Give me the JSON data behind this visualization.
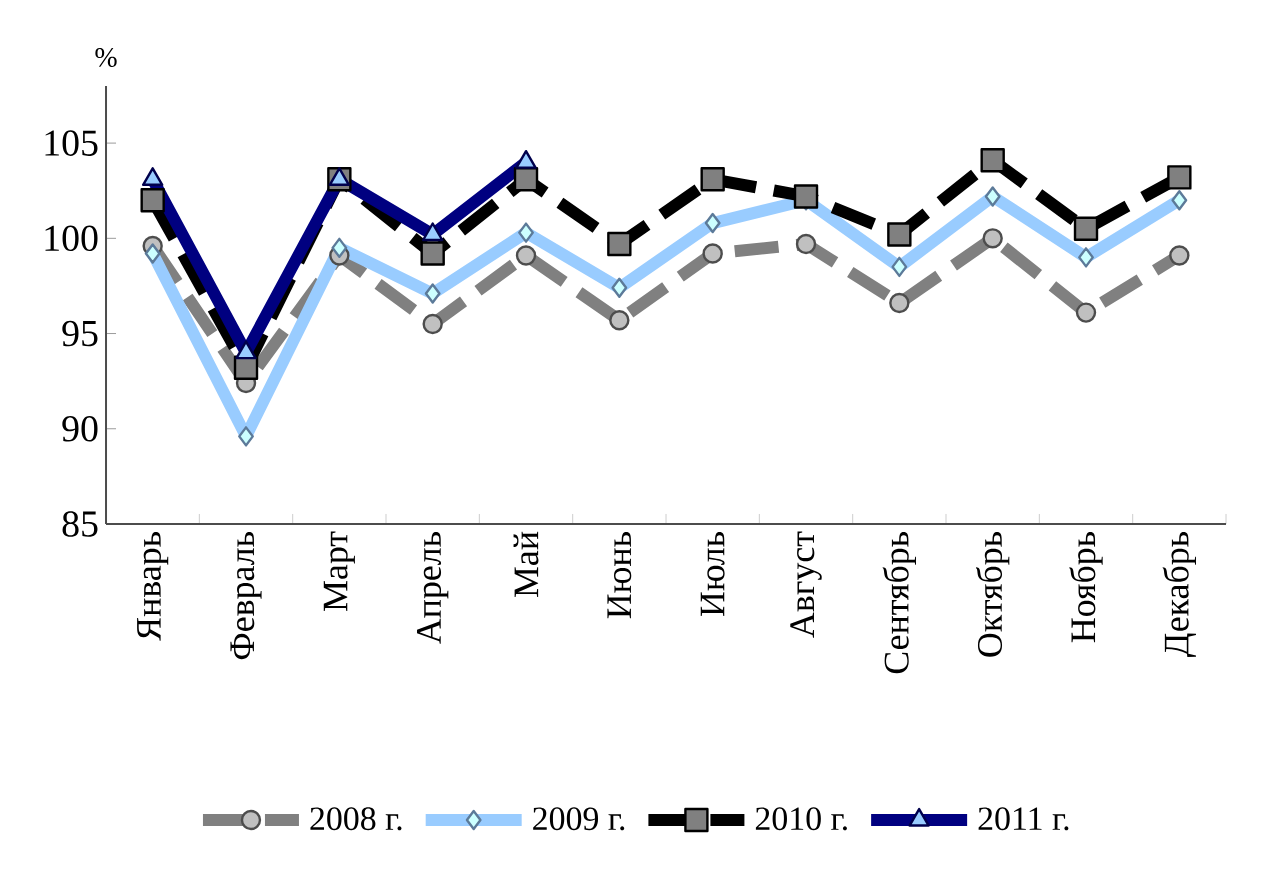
{
  "chart_data": {
    "type": "line",
    "ylabel": "%",
    "categories": [
      "Январь",
      "Февраль",
      "Март",
      "Апрель",
      "Май",
      "Июнь",
      "Июль",
      "Август",
      "Сентябрь",
      "Октябрь",
      "Ноябрь",
      "Декабрь"
    ],
    "series": [
      {
        "name": "2008 г.",
        "color": "#808080",
        "marker": "circle",
        "line_style": "dashed",
        "values": [
          99.6,
          92.4,
          99.1,
          95.5,
          99.1,
          95.7,
          99.2,
          99.7,
          96.6,
          100.0,
          96.1,
          99.1
        ]
      },
      {
        "name": "2009 г.",
        "color": "#99ccff",
        "marker": "diamond",
        "line_style": "solid",
        "values": [
          99.2,
          89.6,
          99.5,
          97.1,
          100.3,
          97.4,
          100.8,
          102.0,
          98.5,
          102.2,
          99.0,
          102.0
        ]
      },
      {
        "name": "2010 г.",
        "color": "#000000",
        "marker": "square",
        "line_style": "dashed",
        "values": [
          102.0,
          93.2,
          103.1,
          99.2,
          103.1,
          99.7,
          103.1,
          102.2,
          100.2,
          104.1,
          100.5,
          103.2
        ]
      },
      {
        "name": "2011 г.",
        "color": "#000080",
        "marker": "triangle",
        "line_style": "solid",
        "values": [
          103.1,
          94.0,
          103.1,
          100.2,
          104.0,
          null,
          null,
          null,
          null,
          null,
          null,
          null
        ]
      }
    ],
    "ylim": [
      85,
      108
    ],
    "yticks": [
      85,
      90,
      95,
      100,
      105
    ],
    "grid": false,
    "legend": "bottom"
  }
}
